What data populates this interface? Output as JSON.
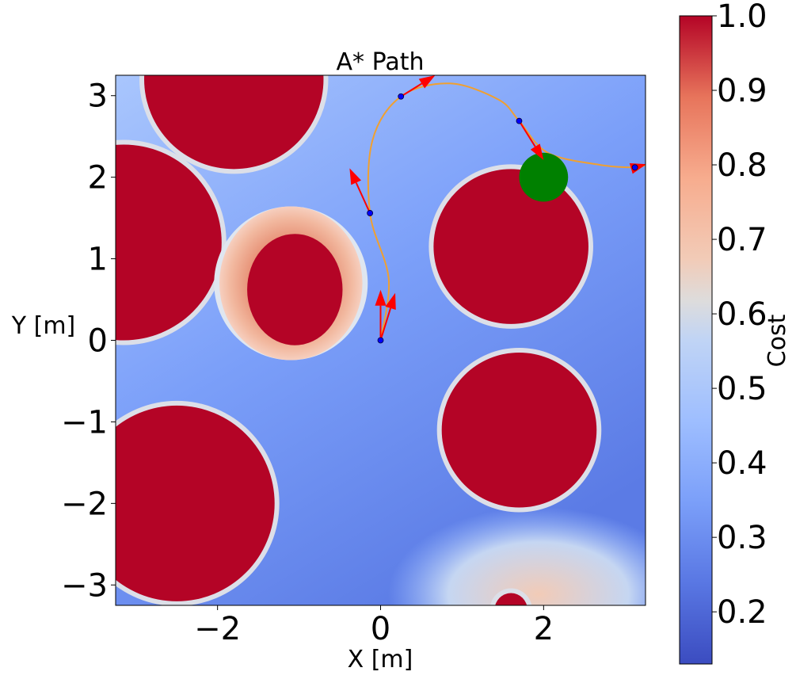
{
  "chart_data": {
    "type": "heatmap",
    "title": "A* Path",
    "xlabel": "X [m]",
    "ylabel": "Y [m]",
    "xlim": [
      -3.25,
      3.25
    ],
    "ylim": [
      -3.25,
      3.25
    ],
    "xticks": [
      -2,
      0,
      2
    ],
    "xtick_labels": [
      "−2",
      "0",
      "2"
    ],
    "yticks": [
      3,
      2,
      1,
      0,
      -1,
      -2,
      -3
    ],
    "ytick_labels": [
      "3",
      "2",
      "1",
      "0",
      "−1",
      "−2",
      "−3"
    ],
    "colorbar": {
      "label": "Cost",
      "range": [
        0.13,
        1.0
      ],
      "ticks": [
        1.0,
        0.9,
        0.8,
        0.7,
        0.6,
        0.5,
        0.4,
        0.3,
        0.2
      ],
      "tick_labels": [
        "1.0",
        "0.9",
        "0.8",
        "0.7",
        "0.6",
        "0.5",
        "0.4",
        "0.3",
        "0.2"
      ],
      "colormap": "coolwarm"
    },
    "obstacles": [
      {
        "cx": -1.8,
        "cy": 3.2,
        "r": 1.1
      },
      {
        "cx": -3.15,
        "cy": 1.2,
        "r": 1.2
      },
      {
        "cx": 1.6,
        "cy": 1.15,
        "r": 0.95
      },
      {
        "cx": 1.7,
        "cy": -1.1,
        "r": 0.95
      },
      {
        "cx": -2.5,
        "cy": -2.0,
        "r": 1.2
      },
      {
        "cx": -1.1,
        "cy": 0.7,
        "r": 0.65,
        "inflated_cost": 0.72
      },
      {
        "cx": 1.6,
        "cy": -3.3,
        "r": 0.2
      }
    ],
    "path": [
      {
        "x": 0.0,
        "y": 0.0
      },
      {
        "x": 0.1,
        "y": 0.75
      },
      {
        "x": -0.13,
        "y": 1.56
      },
      {
        "x": -0.1,
        "y": 2.45
      },
      {
        "x": 0.25,
        "y": 2.99
      },
      {
        "x": 0.85,
        "y": 3.15
      },
      {
        "x": 1.45,
        "y": 2.95
      },
      {
        "x": 1.7,
        "y": 2.69
      },
      {
        "x": 2.05,
        "y": 2.3
      },
      {
        "x": 2.7,
        "y": 2.15
      },
      {
        "x": 3.12,
        "y": 2.12
      },
      {
        "x": 3.25,
        "y": 2.15
      }
    ],
    "waypoints": [
      {
        "x": 0.0,
        "y": 0.0
      },
      {
        "x": -0.13,
        "y": 1.56
      },
      {
        "x": 0.25,
        "y": 2.99
      },
      {
        "x": 1.7,
        "y": 2.69
      },
      {
        "x": 3.12,
        "y": 2.12
      }
    ],
    "heading_arrows": [
      {
        "x": 0.0,
        "y": 0.0,
        "dx": 0.0,
        "dy": 0.62
      },
      {
        "x": 0.0,
        "y": 0.0,
        "dx": 0.18,
        "dy": 0.58
      },
      {
        "x": -0.13,
        "y": 1.56,
        "dx": -0.25,
        "dy": 0.55
      },
      {
        "x": 0.25,
        "y": 2.99,
        "dx": 0.42,
        "dy": 0.26
      },
      {
        "x": 1.7,
        "y": 2.69,
        "dx": 0.3,
        "dy": -0.48
      },
      {
        "x": 3.12,
        "y": 2.12,
        "dx": 0.14,
        "dy": 0.04
      }
    ],
    "goal": {
      "x": 2.0,
      "y": 2.0,
      "r": 0.3
    },
    "colors": {
      "obstacle": "#b40426",
      "path": "#f0a030",
      "waypoint": "#0000ff",
      "arrow": "#ff0000",
      "goal": "#008000"
    }
  }
}
